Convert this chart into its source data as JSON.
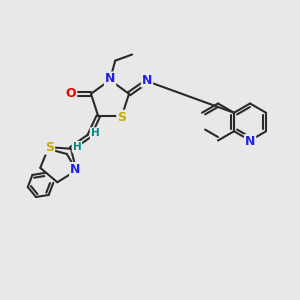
{
  "bg_color": "#e8e8e8",
  "bond_color": "#2a2a2a",
  "atom_colors": {
    "N": "#2020ee",
    "O": "#ee0000",
    "S": "#ccaa00",
    "H": "#008888",
    "C": "#2a2a2a"
  },
  "lw": 1.5,
  "fs": 9.0,
  "fs_small": 7.5
}
